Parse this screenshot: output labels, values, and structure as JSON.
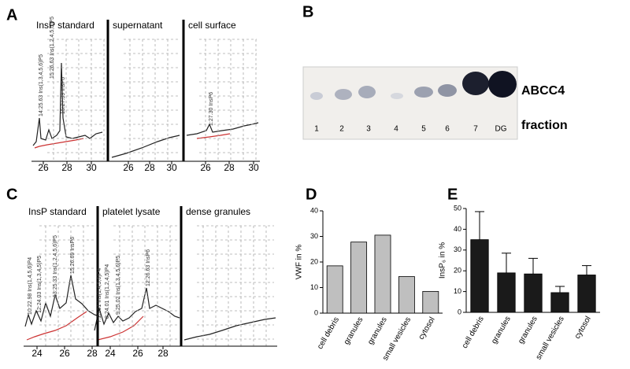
{
  "panels": {
    "A": {
      "letter": "A",
      "subpanels": [
        {
          "title": "InsP standard",
          "xtick_labels": [
            "26",
            "28",
            "30"
          ],
          "peak_labels": [
            "14:25.63 Ins(1,3,4,5,6)P5",
            "15:27.39 InsP6",
            "15:26.63 Ins(1,2,4,5,6)P5"
          ]
        },
        {
          "title": "supernatant",
          "xtick_labels": [
            "26",
            "28",
            "30"
          ],
          "peak_labels": []
        },
        {
          "title": "cell surface",
          "xtick_labels": [
            "26",
            "28",
            "30"
          ],
          "peak_labels": [
            "1:27.30 InsP6"
          ]
        }
      ]
    },
    "B": {
      "letter": "B",
      "band_label": "ABCC4",
      "lane_title": "fraction",
      "lanes": [
        "1",
        "2",
        "3",
        "4",
        "5",
        "6",
        "7",
        "DG"
      ]
    },
    "C": {
      "letter": "C",
      "subpanels": [
        {
          "title": "InsP standard",
          "xtick_labels": [
            "24",
            "26",
            "28"
          ],
          "peak_labels": [
            "10:22.98 Ins(1,4,5,6)P4",
            "12:24.03 Ins(1,3,4,5)P5",
            "13:25.33 Ins(1,2,4,5,6)P5",
            "15:26.69 InsP6"
          ]
        },
        {
          "title": "platelet lysate",
          "xtick_labels": [
            "24",
            "26",
            "28"
          ],
          "peak_labels": [
            "7:23.01 Ins(1,4,5,6)P4",
            "8:24.01 Ins(1,2,4,5)P4",
            "9:25.02 Ins(1,3,4,5,6)P5",
            "12:26.63 InsP6"
          ]
        },
        {
          "title": "dense granules",
          "xtick_labels": [],
          "peak_labels": []
        }
      ]
    }
  },
  "chart_data": [
    {
      "type": "bar",
      "letter": "D",
      "y_label": "VWF in %",
      "categories": [
        "cell debris",
        "granules",
        "granules",
        "small vesicles",
        "cytosol"
      ],
      "values": [
        18.5,
        27.8,
        30.5,
        14.3,
        8.5
      ],
      "color": "#bfbfbf",
      "ylim": [
        0,
        40
      ],
      "yticks": [
        0,
        10,
        20,
        30,
        40
      ]
    },
    {
      "type": "bar",
      "letter": "E",
      "y_label": "InsP₆ in %",
      "categories": [
        "cell debris",
        "granules",
        "granules",
        "small vesicles",
        "cytosol"
      ],
      "values": [
        35,
        19,
        18.5,
        9.5,
        18
      ],
      "errors": [
        13.5,
        9.5,
        7.5,
        3,
        4.5
      ],
      "color": "#1a1a1a",
      "ylim": [
        0,
        50
      ],
      "yticks": [
        0,
        10,
        20,
        30,
        40,
        50
      ]
    }
  ]
}
